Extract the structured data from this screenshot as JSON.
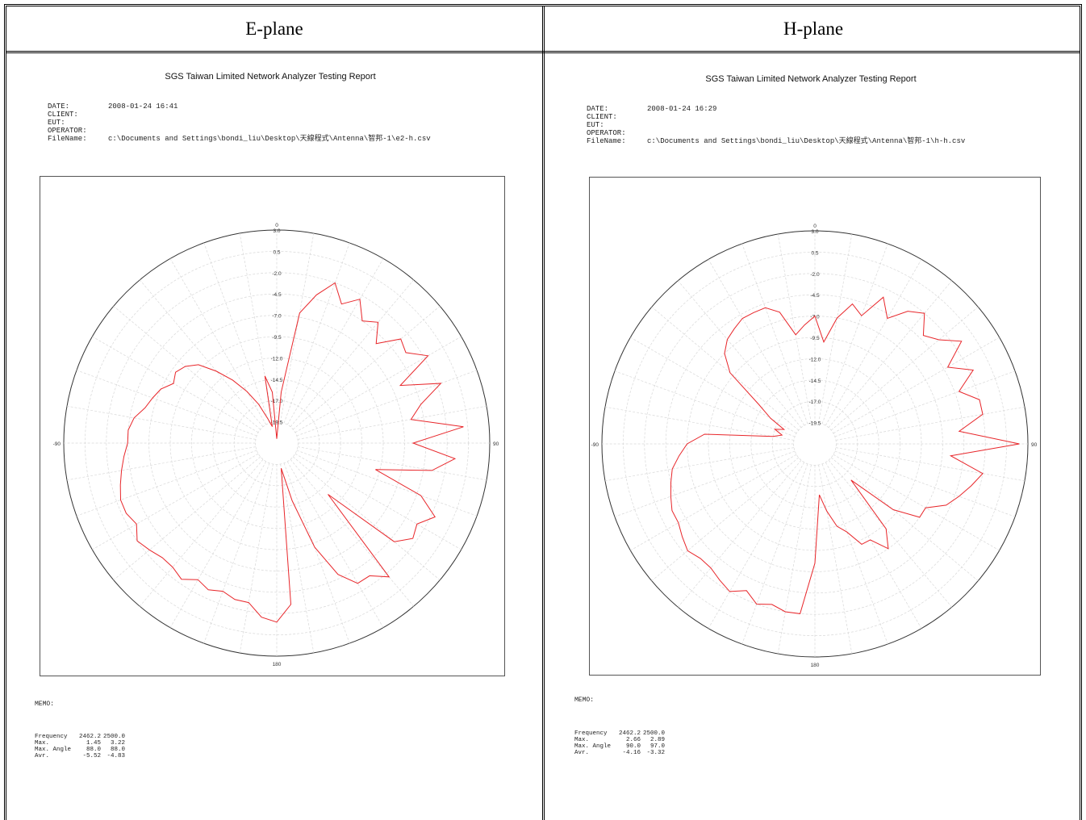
{
  "headers": {
    "left": "E-plane",
    "right": "H-plane"
  },
  "chart_data": [
    {
      "type": "polar",
      "title": "SGS Taiwan Limited Network Analyzer Testing Report",
      "meta": [
        {
          "k": "DATE:",
          "v": "2008-01-24 16:41"
        },
        {
          "k": "CLIENT:",
          "v": ""
        },
        {
          "k": "EUT:",
          "v": ""
        },
        {
          "k": "OPERATOR:",
          "v": ""
        },
        {
          "k": "FileName:",
          "v": "c:\\Documents and Settings\\bondi_liu\\Desktop\\天線程式\\Antenna\\智邦-1\\e2-h.csv"
        }
      ],
      "angle_labels": [
        "0",
        "90",
        "180",
        "-90"
      ],
      "radial_labels": [
        "3.0",
        "0.5",
        "-2.0",
        "-4.5",
        "-7.0",
        "-9.5",
        "-12.0",
        "-14.5",
        "-17.0",
        "-19.5"
      ],
      "rlim": [
        -22.0,
        3.0
      ],
      "series_color": "#e8262a",
      "memo_label": "MEMO:",
      "stats": [
        {
          "label": "Frequency",
          "a": "2462.2",
          "b": "2500.0"
        },
        {
          "label": "Max.",
          "a": "1.45",
          "b": "3.22"
        },
        {
          "label": "Max. Angle",
          "a": "88.0",
          "b": "88.0"
        },
        {
          "label": "Avr.",
          "a": "-5.52",
          "b": "-4.83"
        }
      ],
      "pattern": {
        "angle_deg": [
          0,
          5,
          10,
          15,
          20,
          25,
          30,
          35,
          40,
          45,
          50,
          55,
          60,
          65,
          70,
          75,
          80,
          85,
          90,
          95,
          100,
          105,
          110,
          115,
          120,
          125,
          130,
          135,
          140,
          145,
          150,
          155,
          160,
          165,
          170,
          175,
          180,
          185,
          190,
          195,
          200,
          205,
          210,
          215,
          220,
          225,
          230,
          235,
          240,
          245,
          250,
          255,
          260,
          265,
          270,
          275,
          280,
          285,
          290,
          295,
          300,
          305,
          310,
          315,
          320,
          325,
          330,
          335,
          340,
          345,
          350,
          355
        ],
        "gain_db": [
          -21.5,
          -16,
          -6.5,
          -4,
          -2,
          -4,
          -2.5,
          -4.5,
          -3.5,
          -5.5,
          -3,
          -3.5,
          -1.5,
          -6,
          -1.5,
          -4.5,
          -6,
          0,
          -6,
          -1,
          -3.5,
          -10,
          -4,
          -1.5,
          -3,
          -2.5,
          -4,
          -13.5,
          -1.5,
          -3,
          -3,
          -5,
          -9,
          -15,
          -19,
          -3,
          -1,
          -1.5,
          -3,
          -3,
          -3.5,
          -3,
          -3.5,
          -2.5,
          -3,
          -3,
          -2.5,
          -2,
          -3,
          -2.5,
          -2.5,
          -3,
          -3.5,
          -4,
          -4.5,
          -4.5,
          -5,
          -6,
          -6.5,
          -7,
          -8,
          -7.5,
          -8,
          -9,
          -11,
          -13,
          -15,
          -17,
          -19,
          -20,
          -14,
          -16
        ]
      }
    },
    {
      "type": "polar",
      "title": "SGS Taiwan Limited Network Analyzer Testing Report",
      "meta": [
        {
          "k": "DATE:",
          "v": "2008-01-24 16:29"
        },
        {
          "k": "CLIENT:",
          "v": ""
        },
        {
          "k": "EUT:",
          "v": ""
        },
        {
          "k": "OPERATOR:",
          "v": ""
        },
        {
          "k": "FileName:",
          "v": "c:\\Documents and Settings\\bondi_liu\\Desktop\\天線程式\\Antenna\\智邦-1\\h-h.csv"
        }
      ],
      "angle_labels": [
        "0",
        "90",
        "180",
        "-90"
      ],
      "radial_labels": [
        "3.0",
        "0.5",
        "-2.0",
        "-4.5",
        "-7.0",
        "-9.5",
        "-12.0",
        "-14.5",
        "-17.0",
        "-19.5"
      ],
      "rlim": [
        -22.0,
        3.0
      ],
      "series_color": "#e8262a",
      "memo_label": "MEMO:",
      "stats": [
        {
          "label": "Frequency",
          "a": "2462.2",
          "b": "2500.0"
        },
        {
          "label": "Max.",
          "a": "2.66",
          "b": "2.89"
        },
        {
          "label": "Max. Angle",
          "a": "90.0",
          "b": "97.0"
        },
        {
          "label": "Avr.",
          "a": "-4.16",
          "b": "-3.32"
        }
      ],
      "pattern": {
        "angle_deg": [
          0,
          5,
          10,
          15,
          20,
          25,
          30,
          35,
          40,
          45,
          50,
          55,
          60,
          65,
          70,
          75,
          80,
          85,
          90,
          95,
          100,
          105,
          110,
          115,
          120,
          125,
          130,
          135,
          140,
          145,
          150,
          155,
          160,
          165,
          170,
          175,
          180,
          185,
          190,
          195,
          200,
          205,
          210,
          215,
          220,
          225,
          230,
          235,
          240,
          245,
          250,
          255,
          260,
          265,
          270,
          275,
          280,
          285,
          290,
          295,
          300,
          305,
          310,
          315,
          320,
          325,
          330,
          335,
          340,
          345,
          350,
          355
        ],
        "gain_db": [
          -7,
          -10,
          -7,
          -5,
          -6,
          -3,
          -5,
          -3,
          -2,
          -4,
          -3,
          -1,
          -4,
          -1.5,
          -4,
          -2,
          -2,
          -5,
          2,
          -6,
          -2,
          -3,
          -4,
          -5,
          -7,
          -7,
          -10,
          -16,
          -9,
          -7,
          -9,
          -9,
          -11,
          -12,
          -14,
          -16,
          -8,
          -2,
          -2,
          -2.5,
          -2,
          -3,
          -2,
          -2.5,
          -3,
          -3,
          -2.5,
          -3,
          -3.5,
          -3.5,
          -4,
          -4.5,
          -5,
          -6,
          -7,
          -9,
          -17,
          -18,
          -17,
          -18,
          -16,
          -14,
          -9,
          -7,
          -6,
          -5.5,
          -5,
          -5,
          -5,
          -6,
          -9,
          -8
        ]
      }
    }
  ]
}
